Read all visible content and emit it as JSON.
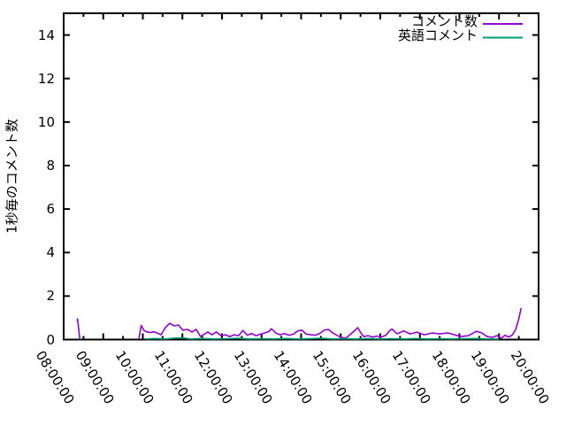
{
  "window": {
    "background": "#ffffff"
  },
  "chart_data": {
    "type": "line",
    "title": "",
    "xlabel": "",
    "ylabel": "1秒毎のコメント数",
    "background": "#ffffff",
    "axis_color": "#000000",
    "grid": false,
    "legend": {
      "position": "top-right-inside",
      "border": false
    },
    "xlim_hours": [
      8,
      20
    ],
    "ylim": [
      0,
      15
    ],
    "yticks": [
      0,
      2,
      4,
      6,
      8,
      10,
      12,
      14
    ],
    "minor_xtick_interval_hours": 0.5,
    "xticks": [
      {
        "hour": 8,
        "label": "08:00:00"
      },
      {
        "hour": 9,
        "label": "09:00:00"
      },
      {
        "hour": 10,
        "label": "10:00:00"
      },
      {
        "hour": 11,
        "label": "11:00:00"
      },
      {
        "hour": 12,
        "label": "12:00:00"
      },
      {
        "hour": 13,
        "label": "13:00:00"
      },
      {
        "hour": 14,
        "label": "14:00:00"
      },
      {
        "hour": 15,
        "label": "15:00:00"
      },
      {
        "hour": 16,
        "label": "16:00:00"
      },
      {
        "hour": 17,
        "label": "17:00:00"
      },
      {
        "hour": 18,
        "label": "18:00:00"
      },
      {
        "hour": 19,
        "label": "19:00:00"
      },
      {
        "hour": 20,
        "label": "20:00:00"
      }
    ],
    "series": [
      {
        "name": "コメント数",
        "color": "#9400d3",
        "segments": [
          [
            [
              8.34,
              0.85
            ],
            [
              8.35,
              0.95
            ],
            [
              8.41,
              0.0
            ]
          ],
          [
            [
              9.9,
              0.02
            ],
            [
              9.96,
              0.65
            ],
            [
              10.03,
              0.42
            ],
            [
              10.1,
              0.35
            ],
            [
              10.19,
              0.32
            ],
            [
              10.28,
              0.36
            ],
            [
              10.36,
              0.3
            ],
            [
              10.46,
              0.22
            ],
            [
              10.57,
              0.55
            ],
            [
              10.68,
              0.75
            ],
            [
              10.79,
              0.63
            ],
            [
              10.9,
              0.67
            ],
            [
              11.01,
              0.43
            ],
            [
              11.13,
              0.47
            ],
            [
              11.24,
              0.35
            ],
            [
              11.35,
              0.47
            ],
            [
              11.46,
              0.14
            ],
            [
              11.57,
              0.26
            ],
            [
              11.64,
              0.35
            ],
            [
              11.75,
              0.22
            ],
            [
              11.86,
              0.35
            ],
            [
              11.97,
              0.18
            ],
            [
              12.08,
              0.22
            ],
            [
              12.2,
              0.14
            ],
            [
              12.31,
              0.22
            ],
            [
              12.42,
              0.18
            ],
            [
              12.53,
              0.42
            ],
            [
              12.64,
              0.2
            ],
            [
              12.75,
              0.28
            ],
            [
              12.86,
              0.18
            ],
            [
              12.97,
              0.25
            ],
            [
              13.08,
              0.3
            ],
            [
              13.19,
              0.38
            ],
            [
              13.25,
              0.5
            ],
            [
              13.36,
              0.3
            ],
            [
              13.47,
              0.22
            ],
            [
              13.58,
              0.28
            ],
            [
              13.69,
              0.2
            ],
            [
              13.8,
              0.25
            ],
            [
              13.92,
              0.4
            ],
            [
              14.02,
              0.43
            ],
            [
              14.13,
              0.25
            ],
            [
              14.25,
              0.22
            ],
            [
              14.36,
              0.2
            ],
            [
              14.47,
              0.28
            ],
            [
              14.58,
              0.43
            ],
            [
              14.69,
              0.47
            ],
            [
              14.8,
              0.3
            ],
            [
              14.92,
              0.18
            ],
            [
              15.02,
              0.1
            ],
            [
              15.13,
              0.06
            ],
            [
              15.25,
              0.25
            ],
            [
              15.36,
              0.42
            ],
            [
              15.43,
              0.55
            ],
            [
              15.51,
              0.3
            ],
            [
              15.58,
              0.14
            ],
            [
              15.69,
              0.18
            ],
            [
              15.8,
              0.12
            ],
            [
              15.92,
              0.16
            ],
            [
              16.03,
              0.12
            ],
            [
              16.14,
              0.2
            ],
            [
              16.26,
              0.45
            ],
            [
              16.3,
              0.48
            ],
            [
              16.42,
              0.27
            ],
            [
              16.5,
              0.32
            ],
            [
              16.59,
              0.4
            ],
            [
              16.75,
              0.26
            ],
            [
              16.93,
              0.34
            ],
            [
              17.11,
              0.22
            ],
            [
              17.31,
              0.3
            ],
            [
              17.49,
              0.26
            ],
            [
              17.72,
              0.3
            ],
            [
              17.87,
              0.22
            ],
            [
              18.05,
              0.14
            ],
            [
              18.23,
              0.18
            ],
            [
              18.43,
              0.38
            ],
            [
              18.57,
              0.3
            ],
            [
              18.7,
              0.14
            ],
            [
              18.83,
              0.1
            ],
            [
              18.95,
              0.18
            ],
            [
              19.06,
              0.06
            ],
            [
              19.15,
              0.2
            ],
            [
              19.24,
              0.12
            ],
            [
              19.33,
              0.2
            ],
            [
              19.42,
              0.45
            ],
            [
              19.5,
              0.95
            ],
            [
              19.56,
              1.45
            ]
          ]
        ]
      },
      {
        "name": "英語コメント",
        "color": "#009e73",
        "segments": [
          [
            [
              10.08,
              0.03
            ],
            [
              10.3,
              0.05
            ],
            [
              10.6,
              0.03
            ],
            [
              10.85,
              0.08
            ],
            [
              11.05,
              0.07
            ],
            [
              11.2,
              0.03
            ],
            [
              11.5,
              0.05
            ],
            [
              11.8,
              0.03
            ],
            [
              12.1,
              0.04
            ],
            [
              12.4,
              0.06
            ],
            [
              12.7,
              0.03
            ],
            [
              13.0,
              0.04
            ],
            [
              13.3,
              0.03
            ],
            [
              13.6,
              0.05
            ],
            [
              13.9,
              0.03
            ],
            [
              14.2,
              0.04
            ],
            [
              14.5,
              0.06
            ],
            [
              14.8,
              0.03
            ],
            [
              15.1,
              0.04
            ],
            [
              15.4,
              0.03
            ],
            [
              15.7,
              0.05
            ],
            [
              16.0,
              0.03
            ],
            [
              16.3,
              0.04
            ],
            [
              16.6,
              0.03
            ],
            [
              16.9,
              0.05
            ],
            [
              17.2,
              0.03
            ],
            [
              17.5,
              0.04
            ],
            [
              17.8,
              0.03
            ],
            [
              18.1,
              0.04
            ],
            [
              18.4,
              0.05
            ],
            [
              18.7,
              0.03
            ],
            [
              19.0,
              0.03
            ]
          ]
        ]
      }
    ]
  }
}
